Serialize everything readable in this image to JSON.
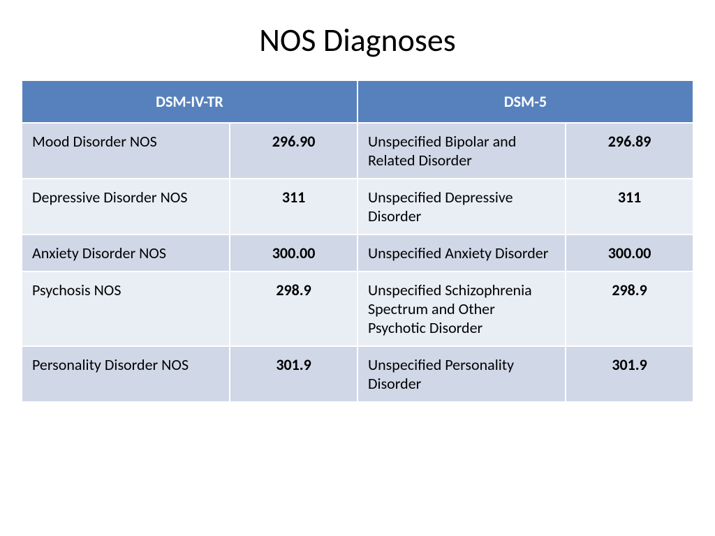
{
  "title": "NOS Diagnoses",
  "table": {
    "type": "table",
    "header_bg": "#5781bd",
    "header_fg": "#ffffff",
    "row_alt_bg_a": "#d0d8e7",
    "row_alt_bg_b": "#e9edf4",
    "border_color": "#ffffff",
    "text_color": "#000000",
    "title_fontsize": 46,
    "header_fontsize": 22,
    "cell_fontsize": 22,
    "columns": [
      {
        "label": "DSM-IV-TR",
        "span": 2
      },
      {
        "label": "DSM-5",
        "span": 2
      }
    ],
    "col_roles": [
      "name",
      "code",
      "name",
      "code"
    ],
    "rows": [
      [
        "Mood Disorder NOS",
        "296.90",
        "Unspecified Bipolar and Related Disorder",
        "296.89"
      ],
      [
        "Depressive Disorder NOS",
        "311",
        "Unspecified Depressive Disorder",
        "311"
      ],
      [
        "Anxiety Disorder NOS",
        "300.00",
        "Unspecified Anxiety Disorder",
        "300.00"
      ],
      [
        "Psychosis NOS",
        "298.9",
        "Unspecified Schizophrenia Spectrum and Other Psychotic Disorder",
        "298.9"
      ],
      [
        "Personality Disorder NOS",
        "301.9",
        "Unspecified Personality Disorder",
        "301.9"
      ]
    ]
  }
}
